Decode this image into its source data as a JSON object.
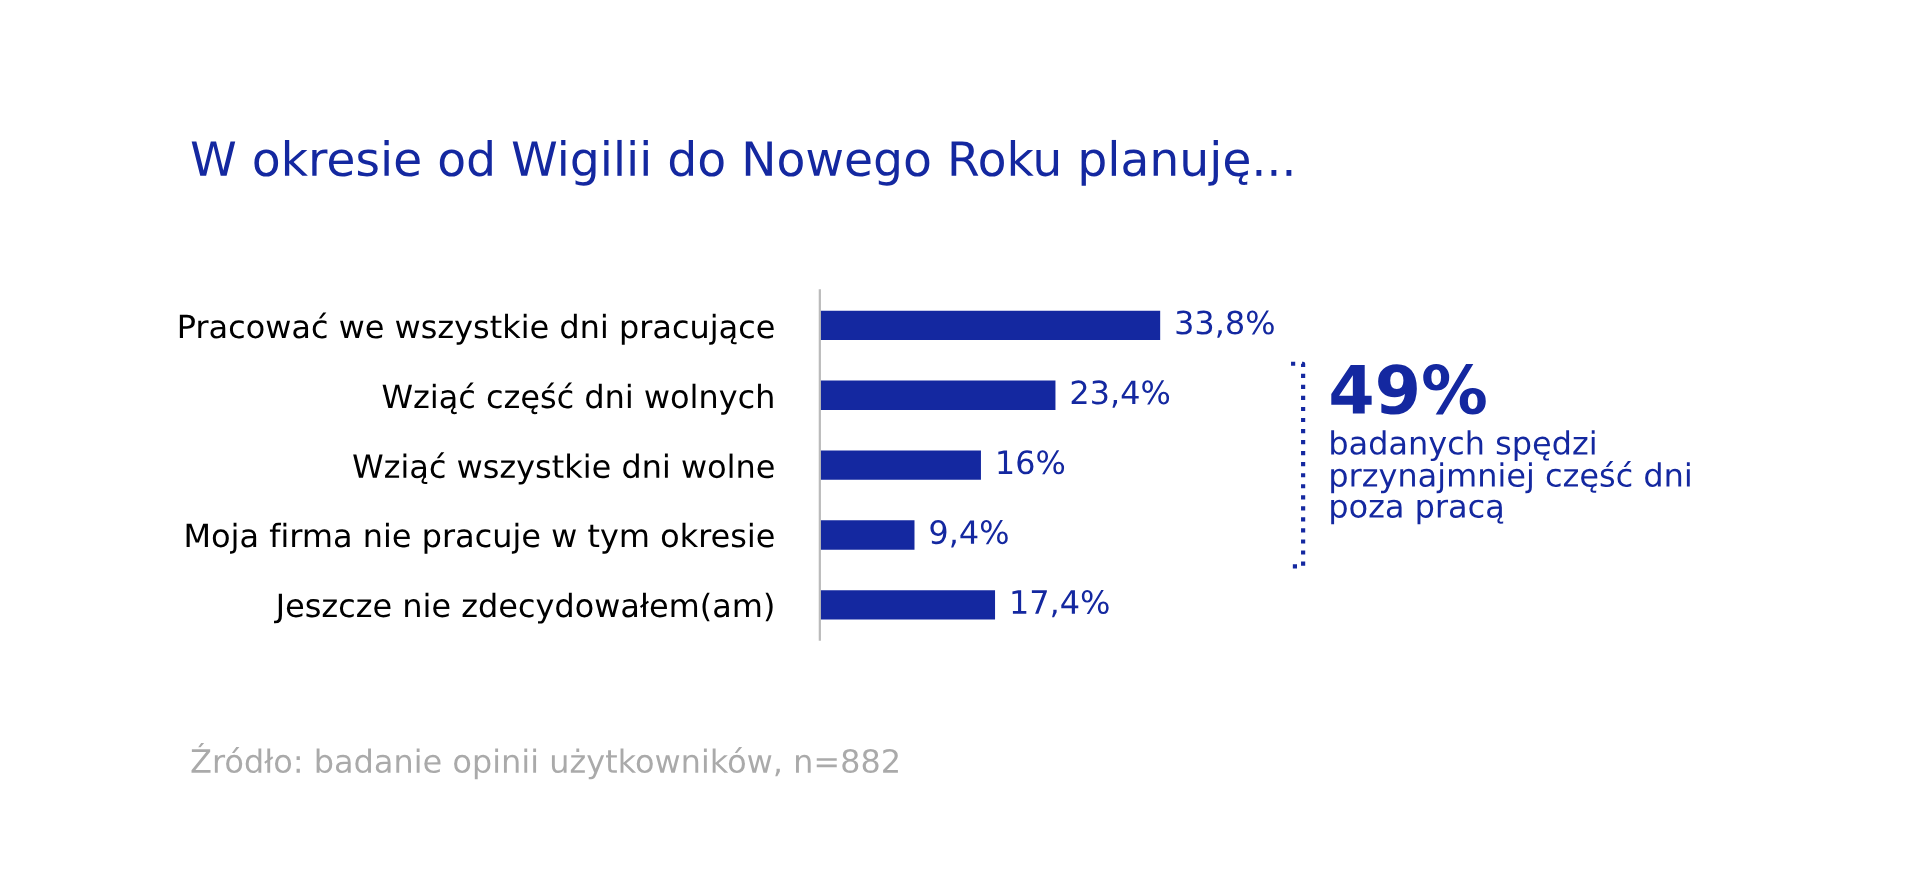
{
  "chart_data": {
    "type": "bar",
    "orientation": "horizontal",
    "title": "W okresie od Wigilii do Nowego Roku planuję...",
    "categories": [
      "Pracować we wszystkie dni pracujące",
      "Wziąć część dni wolnych",
      "Wziąć wszystkie dni wolne",
      "Moja firma nie pracuje w tym okresie",
      "Jeszcze nie zdecydowałem(am)"
    ],
    "values": [
      33.8,
      23.4,
      16,
      9.4,
      17.4
    ],
    "value_labels": [
      "33,8%",
      "23,4%",
      "16%",
      "9,4%",
      "17,4%"
    ],
    "color": "#1428a0",
    "tick_labels": "y",
    "grid": false,
    "legend": false,
    "annotations": [
      "49%",
      "badanych spędzi\nprzynajmniej część dni\npoza pracą",
      "Źródło: badanie opinii użytkowników, n=882"
    ]
  }
}
